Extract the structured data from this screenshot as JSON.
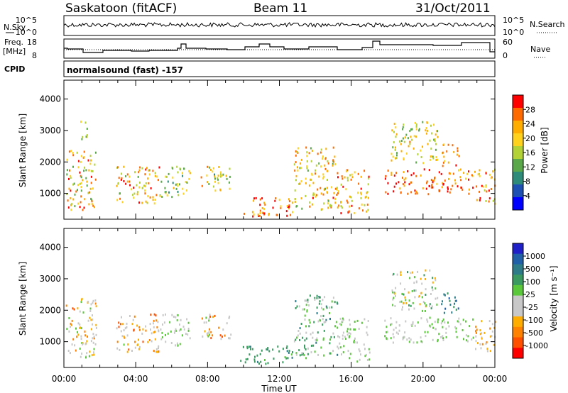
{
  "header": {
    "station": "Saskatoon (fitACF)",
    "beam": "Beam 11",
    "date": "31/Oct/2011"
  },
  "nsky_panel": {
    "left_label": "N.Sky",
    "right_label": "N.Search",
    "left_ticks": [
      "10^5",
      "10^0"
    ],
    "right_ticks": [
      "10^5",
      "10^0"
    ]
  },
  "freq_panel": {
    "left_label_line1": "Freq.",
    "left_label_line2": "[MHz]",
    "right_label": "Nave",
    "left_ticks": [
      "18",
      "8"
    ],
    "right_ticks": [
      "60",
      "0"
    ]
  },
  "cpid": {
    "label": "CPID",
    "program": "normalsound (fast) -157"
  },
  "chart_data": [
    {
      "type": "heatmap",
      "title": "",
      "ylabel": "Slant Range [km]",
      "xlabel": "",
      "xlim_hours": [
        0,
        24
      ],
      "ylim": [
        180,
        4600
      ],
      "yticks": [
        1000,
        2000,
        3000,
        4000
      ],
      "colorbar": {
        "label": "Power [dB]",
        "ticks": [
          "28",
          "24",
          "20",
          "16",
          "12",
          "8",
          "4"
        ],
        "colors": [
          "#ff0000",
          "#ff6a00",
          "#ffae00",
          "#ffd21e",
          "#b2d235",
          "#5aa84a",
          "#2e8b7a",
          "#1e50b4",
          "#0000ff"
        ]
      },
      "scatter_regions": [
        {
          "t0": 0.1,
          "t1": 1.8,
          "r0": 500,
          "r1": 2400,
          "cmin": 0.35,
          "cmax": 0.95
        },
        {
          "t0": 0.9,
          "t1": 1.3,
          "r0": 2600,
          "r1": 3400,
          "cmin": 0.3,
          "cmax": 0.6
        },
        {
          "t0": 2.9,
          "t1": 5.3,
          "r0": 700,
          "r1": 1900,
          "cmin": 0.4,
          "cmax": 0.95
        },
        {
          "t0": 5.3,
          "t1": 7.0,
          "r0": 900,
          "r1": 1900,
          "cmin": 0.3,
          "cmax": 0.7
        },
        {
          "t0": 7.6,
          "t1": 9.3,
          "r0": 1100,
          "r1": 1900,
          "cmin": 0.3,
          "cmax": 0.85
        },
        {
          "t0": 9.8,
          "t1": 12.8,
          "r0": 300,
          "r1": 900,
          "cmin": 0.6,
          "cmax": 1.0
        },
        {
          "t0": 12.8,
          "t1": 15.2,
          "r0": 500,
          "r1": 2500,
          "cmin": 0.4,
          "cmax": 0.9
        },
        {
          "t0": 15.2,
          "t1": 17.0,
          "r0": 400,
          "r1": 1800,
          "cmin": 0.45,
          "cmax": 0.95
        },
        {
          "t0": 17.8,
          "t1": 22.8,
          "r0": 1000,
          "r1": 1800,
          "cmin": 0.65,
          "cmax": 1.0
        },
        {
          "t0": 18.2,
          "t1": 20.8,
          "r0": 2000,
          "r1": 3300,
          "cmin": 0.35,
          "cmax": 0.8
        },
        {
          "t0": 21.0,
          "t1": 22.0,
          "r0": 1900,
          "r1": 2600,
          "cmin": 0.6,
          "cmax": 0.9
        },
        {
          "t0": 22.8,
          "t1": 24.0,
          "r0": 700,
          "r1": 1800,
          "cmin": 0.45,
          "cmax": 1.0
        }
      ]
    },
    {
      "type": "heatmap",
      "title": "",
      "ylabel": "Slant Range [km]",
      "xlabel": "Time UT",
      "xlim_hours": [
        0,
        24
      ],
      "ylim": [
        180,
        4600
      ],
      "yticks": [
        1000,
        2000,
        3000,
        4000
      ],
      "xticks": [
        "00:00",
        "04:00",
        "08:00",
        "12:00",
        "16:00",
        "20:00",
        "00:00"
      ],
      "colorbar": {
        "label": "Velocity [m s⁻¹]",
        "ticks": [
          "1000",
          "500",
          "100",
          "25",
          "-25",
          "-100",
          "-500",
          "-1000"
        ],
        "colors": [
          "#2020c8",
          "#2060a8",
          "#2e7c88",
          "#3a9a60",
          "#5ac83a",
          "#c8c8c8",
          "#c8c8c8",
          "#ffae00",
          "#ff8200",
          "#ff5000",
          "#ff0000"
        ]
      },
      "scatter_regions": [
        {
          "t0": 0.1,
          "t1": 1.8,
          "r0": 500,
          "r1": 2400,
          "cmin": 0.15,
          "cmax": 0.6
        },
        {
          "t0": 2.9,
          "t1": 5.3,
          "r0": 700,
          "r1": 1900,
          "cmin": 0.1,
          "cmax": 0.55
        },
        {
          "t0": 5.3,
          "t1": 7.0,
          "r0": 900,
          "r1": 1900,
          "cmin": 0.4,
          "cmax": 0.6
        },
        {
          "t0": 7.6,
          "t1": 9.3,
          "r0": 1100,
          "r1": 1900,
          "cmin": 0.15,
          "cmax": 0.6
        },
        {
          "t0": 9.8,
          "t1": 12.8,
          "r0": 300,
          "r1": 900,
          "cmin": 0.62,
          "cmax": 0.78
        },
        {
          "t0": 12.8,
          "t1": 15.2,
          "r0": 500,
          "r1": 2500,
          "cmin": 0.45,
          "cmax": 0.75
        },
        {
          "t0": 15.2,
          "t1": 17.0,
          "r0": 400,
          "r1": 1800,
          "cmin": 0.45,
          "cmax": 0.62
        },
        {
          "t0": 17.8,
          "t1": 22.8,
          "r0": 1000,
          "r1": 1800,
          "cmin": 0.45,
          "cmax": 0.6
        },
        {
          "t0": 18.2,
          "t1": 20.8,
          "r0": 2000,
          "r1": 3300,
          "cmin": 0.3,
          "cmax": 0.72
        },
        {
          "t0": 21.0,
          "t1": 22.0,
          "r0": 1900,
          "r1": 2600,
          "cmin": 0.7,
          "cmax": 0.85
        },
        {
          "t0": 22.8,
          "t1": 24.0,
          "r0": 700,
          "r1": 1800,
          "cmin": 0.2,
          "cmax": 0.55
        }
      ]
    }
  ]
}
